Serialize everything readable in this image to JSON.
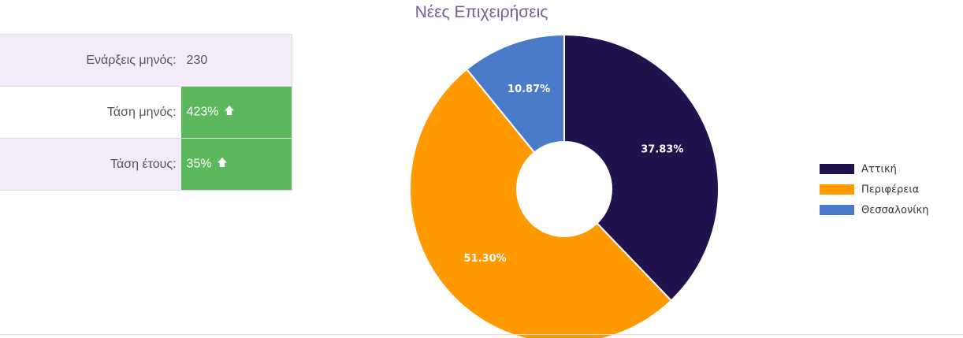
{
  "stats": {
    "rows": [
      {
        "label": "Ενάρξεις μηνός:",
        "value": "230",
        "trend": false
      },
      {
        "label": "Τάση μηνός:",
        "value": "423%",
        "trend": true
      },
      {
        "label": "Τάση έτους:",
        "value": "35%",
        "trend": true
      }
    ],
    "trend_color": "#5cb85c",
    "trend_icon": "arrow-up-icon"
  },
  "chart_data": {
    "type": "pie",
    "title": "Νέες Επιχειρήσεις",
    "labels": [
      "Αττική",
      "Περιφέρεια",
      "Θεσσαλονίκη"
    ],
    "values": [
      37.83,
      51.3,
      10.87
    ],
    "display_values": [
      "37.83%",
      "51.30%",
      "10.87%"
    ],
    "colors": [
      "#20124d",
      "#ff9900",
      "#4a7bc8"
    ],
    "donut": true,
    "legend_position": "right"
  }
}
